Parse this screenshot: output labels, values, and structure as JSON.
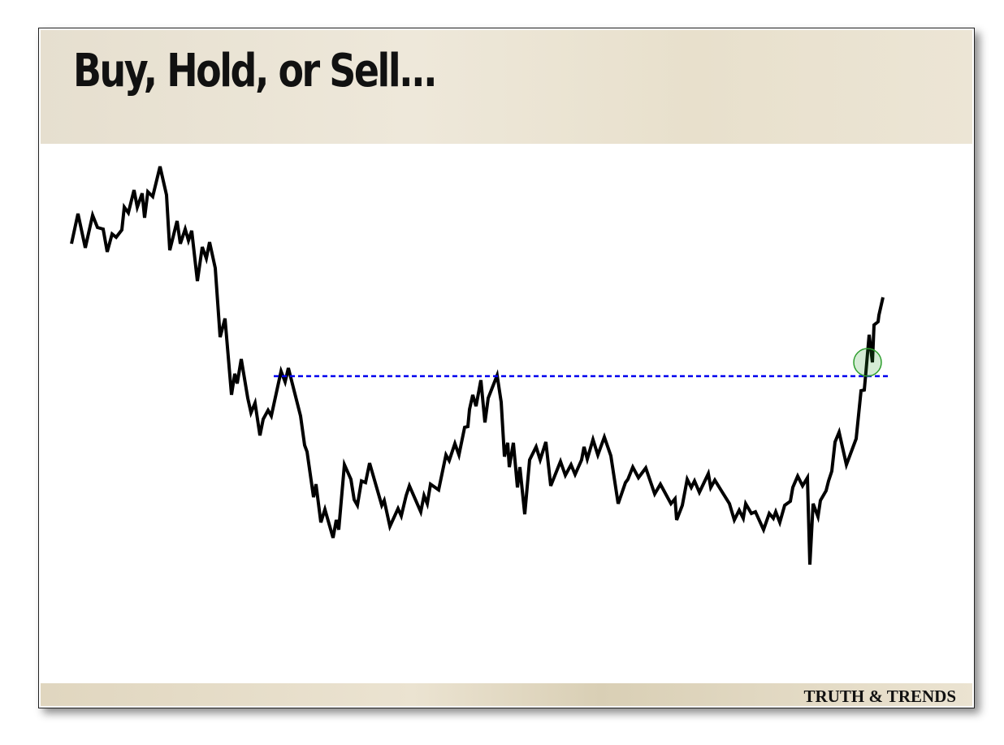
{
  "header": {
    "title": "Buy, Hold, or Sell..."
  },
  "footer": {
    "brand": "TRUTH & TRENDS"
  },
  "chart_data": {
    "type": "line",
    "color": "#000000",
    "xlim": [
      0,
      999
    ],
    "ylim": [
      0,
      100
    ],
    "x": [
      0,
      8,
      17,
      26,
      32,
      39,
      44,
      50,
      55,
      62,
      65,
      70,
      77,
      81,
      87,
      90,
      94,
      100,
      109,
      117,
      121,
      130,
      134,
      140,
      144,
      148,
      155,
      161,
      166,
      170,
      177,
      183,
      189,
      197,
      201,
      204,
      209,
      217,
      221,
      226,
      232,
      236,
      242,
      246,
      258,
      263,
      267,
      282,
      287,
      290,
      298,
      301,
      307,
      312,
      322,
      326,
      329,
      336,
      344,
      348,
      352,
      357,
      362,
      367,
      382,
      385,
      392,
      402,
      406,
      412,
      416,
      430,
      434,
      438,
      442,
      452,
      461,
      465,
      472,
      477,
      484,
      488,
      490,
      494,
      498,
      504,
      509,
      513,
      524,
      529,
      533,
      537,
      539,
      544,
      549,
      552,
      558,
      564,
      572,
      577,
      584,
      590,
      602,
      608,
      615,
      620,
      628,
      631,
      635,
      642,
      648,
      656,
      664,
      673,
      682,
      685,
      691,
      698,
      707,
      718,
      725,
      738,
      743,
      745,
      752,
      758,
      763,
      767,
      773,
      784,
      787,
      792,
      810,
      816,
      822,
      827,
      830,
      837,
      842,
      852,
      859,
      864,
      867,
      872,
      878,
      885,
      888,
      894,
      900,
      906,
      909,
      913,
      919,
      922,
      929,
      932,
      936,
      940,
      945,
      954,
      966,
      972,
      976,
      978,
      982,
      986,
      988,
      993,
      994,
      999
    ],
    "values": [
      80,
      87.4,
      79,
      87,
      84,
      83.6,
      78,
      82.4,
      81.6,
      83.4,
      89,
      87.6,
      93.2,
      89,
      92.4,
      86.4,
      92.8,
      91.6,
      99,
      92,
      78.4,
      85.6,
      80,
      83.6,
      80.8,
      83.2,
      70.8,
      79.2,
      76.4,
      80.4,
      74,
      57,
      61.6,
      42.8,
      48,
      45.6,
      51.6,
      42,
      38.4,
      40.8,
      32.8,
      36.8,
      39,
      37.6,
      48.6,
      46,
      49.4,
      37.6,
      30.4,
      28.8,
      17.6,
      20.8,
      11.4,
      14.6,
      7.6,
      12,
      9.6,
      25.6,
      22,
      17,
      15.6,
      21.6,
      21.2,
      26,
      15.6,
      16.8,
      10.4,
      14.8,
      13,
      18,
      20.4,
      14,
      18,
      16,
      20.8,
      19.4,
      28,
      26.6,
      30.8,
      28,
      34.8,
      35,
      39.2,
      42.8,
      40,
      46.4,
      36,
      42,
      47.6,
      41,
      27.6,
      31,
      25,
      31,
      20,
      25,
      13.4,
      26.8,
      30,
      26.8,
      31.2,
      20.4,
      26.4,
      23,
      25.6,
      23.2,
      26.8,
      30,
      27,
      31.8,
      28,
      32.4,
      27.8,
      16,
      21.2,
      22,
      25,
      22.4,
      24.8,
      18.4,
      20.8,
      16,
      17.2,
      12,
      15.6,
      22,
      20,
      21.6,
      18.8,
      23.4,
      20,
      21.8,
      16,
      12,
      14.4,
      12.4,
      16,
      13.6,
      14,
      9.6,
      13.6,
      12.4,
      14,
      11.4,
      15.6,
      16.6,
      20,
      22.8,
      20.4,
      22.4,
      1,
      16,
      12.8,
      16.8,
      19.2,
      21.6,
      24,
      31.2,
      33.6,
      25.6,
      32,
      43.8,
      44,
      48.4,
      57.6,
      50.8,
      60,
      60.8,
      62.4,
      66.8
    ],
    "reference_line": {
      "value": 47.4,
      "x": [
        249,
        1007
      ],
      "color": "#0000ee"
    },
    "highlight": {
      "x": 980,
      "y": 50.8,
      "color": "#2e9e2e"
    }
  }
}
